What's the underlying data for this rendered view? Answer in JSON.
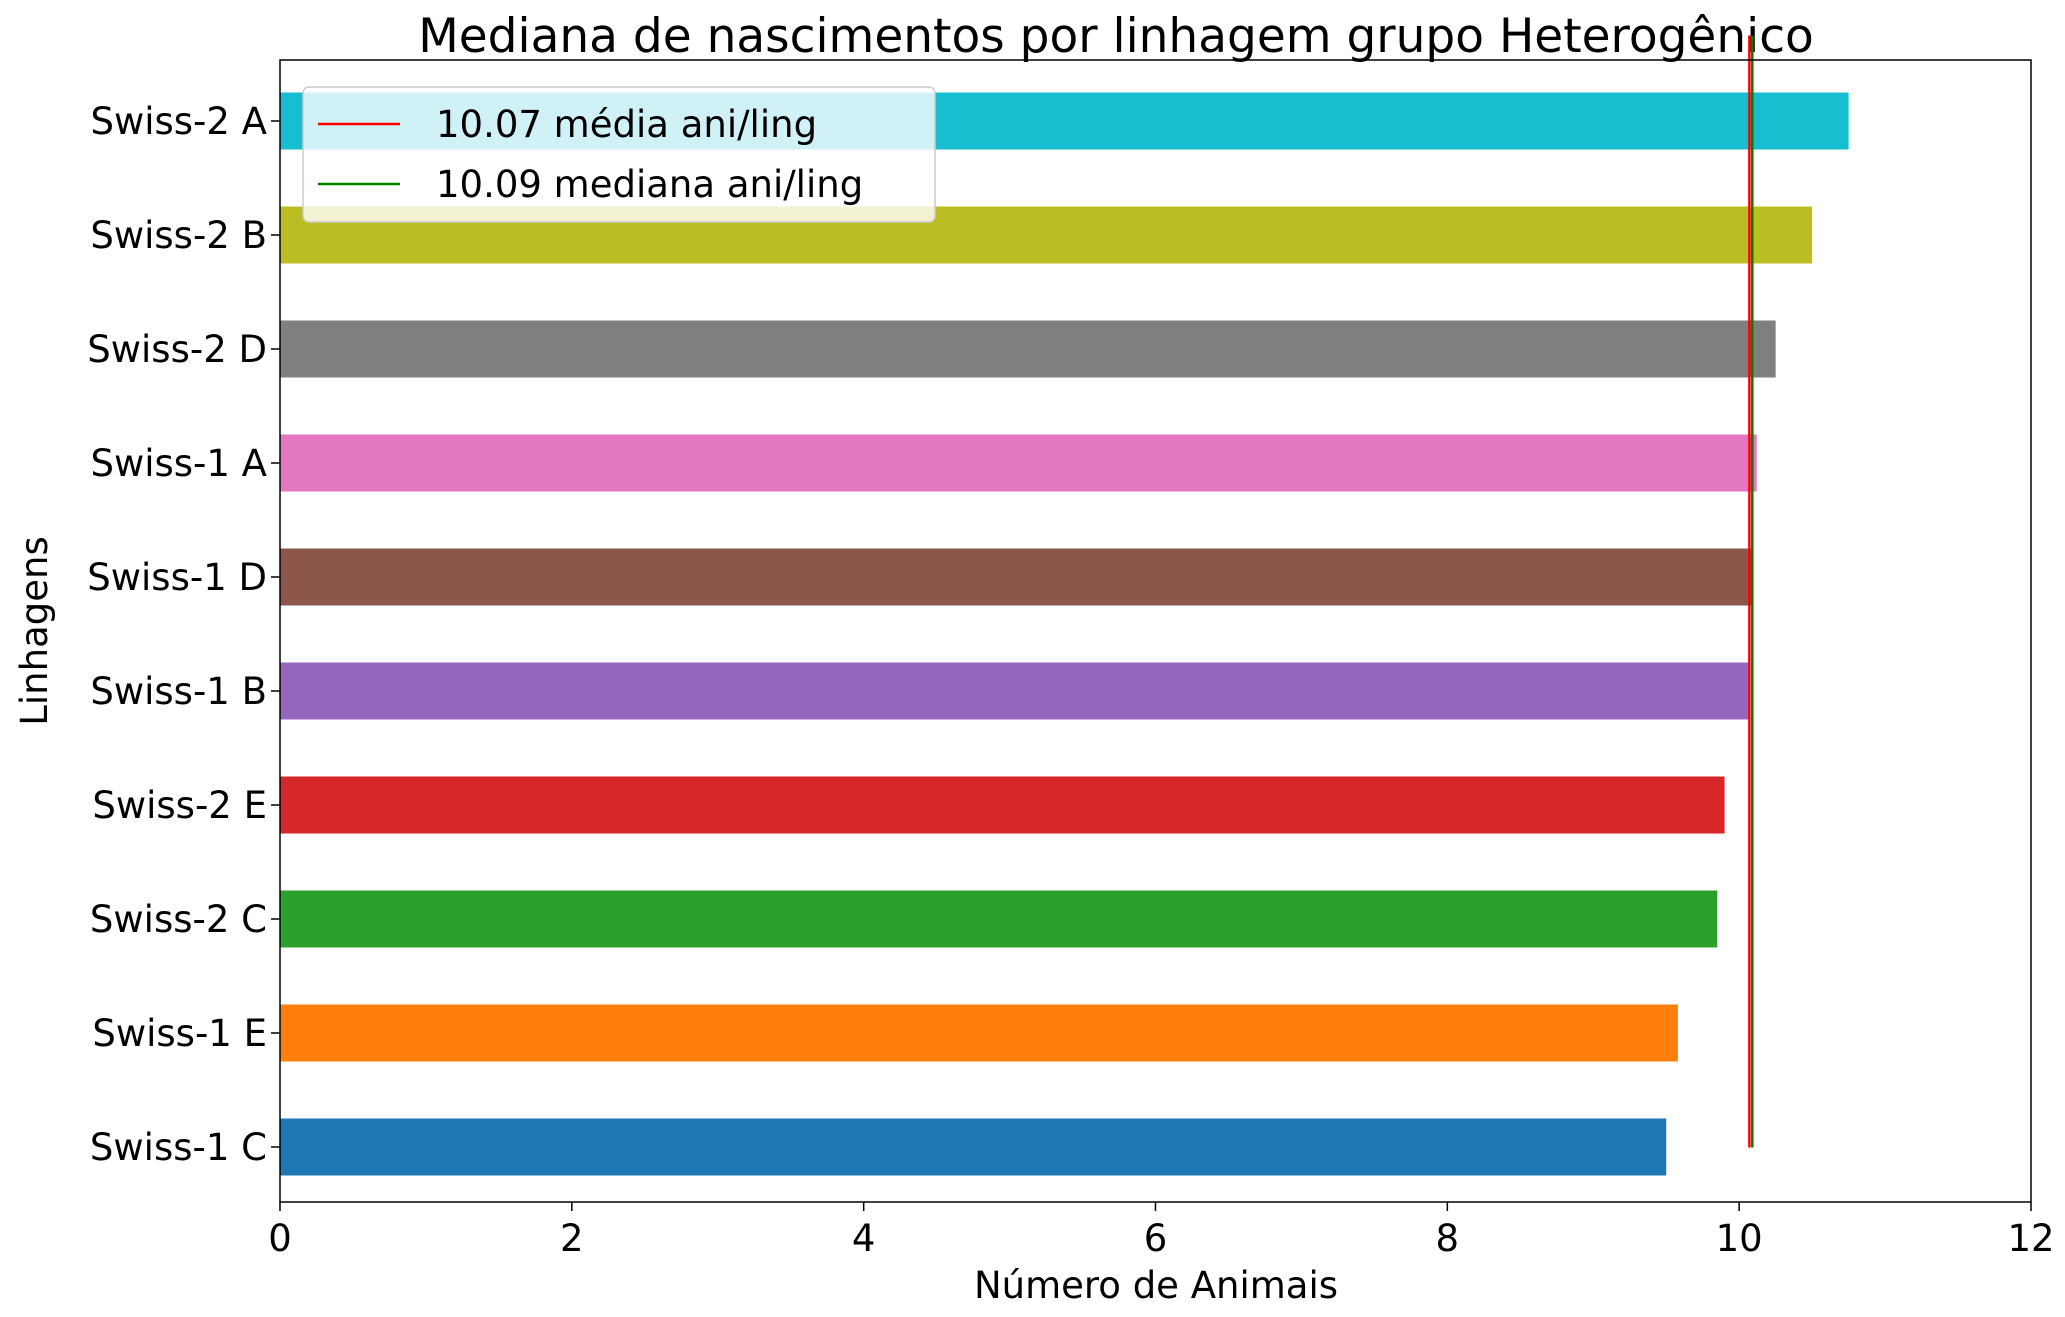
{
  "chart_data": {
    "type": "bar",
    "orientation": "horizontal",
    "title": "Mediana de nascimentos por linhagem grupo Heterogênico",
    "xlabel": "Número de Animais",
    "ylabel": "Linhagens",
    "xlim": [
      0,
      12
    ],
    "xticks": [
      "0",
      "2",
      "4",
      "6",
      "8",
      "10",
      "12"
    ],
    "grid": false,
    "legend_position": "top-left",
    "categories": [
      "Swiss-1 C",
      "Swiss-1 E",
      "Swiss-2 C",
      "Swiss-2 E",
      "Swiss-1 B",
      "Swiss-1 D",
      "Swiss-1 A",
      "Swiss-2 D",
      "Swiss-2 B",
      "Swiss-2 A"
    ],
    "values": [
      9.5,
      9.58,
      9.85,
      9.9,
      10.07,
      10.09,
      10.12,
      10.25,
      10.5,
      10.75
    ],
    "colors": [
      "#1f77b4",
      "#ff7f0e",
      "#2ca02c",
      "#d62728",
      "#9467bd",
      "#8c564b",
      "#e377c2",
      "#7f7f7f",
      "#bcbd22",
      "#17becf"
    ],
    "reference_lines": [
      {
        "label": "10.07 média ani/ling",
        "value": 10.07,
        "color": "#ff0000"
      },
      {
        "label": "10.09 mediana ani/ling",
        "value": 10.09,
        "color": "#008000"
      }
    ]
  }
}
